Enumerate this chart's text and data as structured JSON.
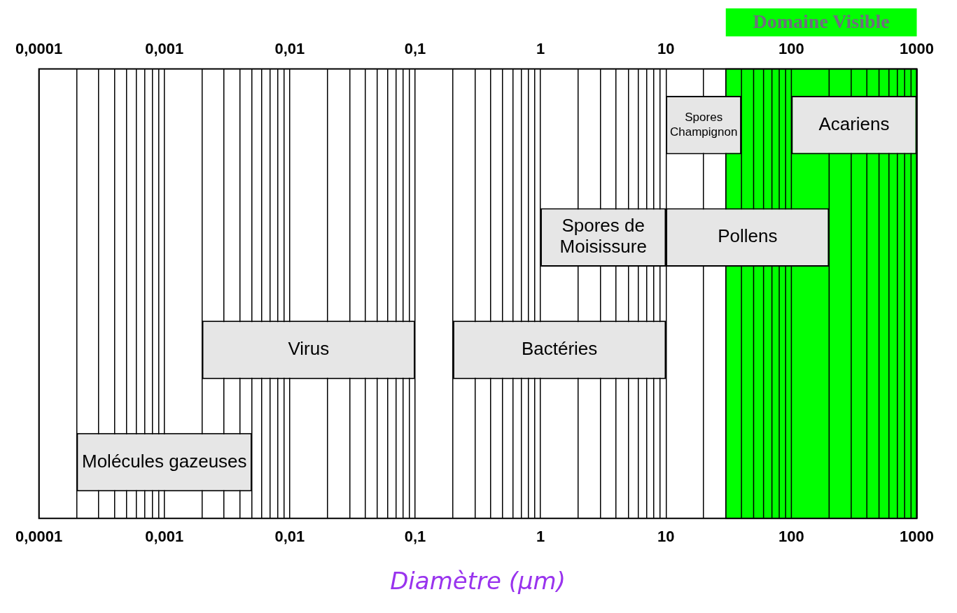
{
  "chart_data": {
    "type": "bar",
    "orientation": "horizontal",
    "xlabel": "Diamètre (μm)",
    "log": "x",
    "grid": "x",
    "legend": false,
    "tick_labels": "x",
    "categories": [
      null,
      null,
      null,
      null
    ],
    "series": [
      {
        "name": "Spores Champignon",
        "color": "#e6e6e6",
        "values": [
          30,
          null,
          null,
          null
        ],
        "base": [
          10,
          null,
          null,
          null
        ]
      },
      {
        "name": "Acariens",
        "color": "#e6e6e6",
        "values": [
          900,
          null,
          null,
          null
        ],
        "base": [
          100,
          null,
          null,
          null
        ]
      },
      {
        "name": "Spores de Moisissure",
        "color": "#e6e6e6",
        "values": [
          null,
          9,
          null,
          null
        ],
        "base": [
          null,
          1,
          null,
          null
        ]
      },
      {
        "name": "Pollens",
        "color": "#e6e6e6",
        "values": [
          null,
          190,
          null,
          null
        ],
        "base": [
          null,
          10,
          null,
          null
        ]
      },
      {
        "name": "Virus",
        "color": "#e6e6e6",
        "values": [
          null,
          null,
          0.098,
          null
        ],
        "base": [
          null,
          null,
          0.002,
          null
        ]
      },
      {
        "name": "Bactéries",
        "color": "#e6e6e6",
        "values": [
          null,
          null,
          9.8,
          null
        ],
        "base": [
          null,
          null,
          0.2,
          null
        ]
      },
      {
        "name": "Molécules gazeuses",
        "color": "#e6e6e6",
        "values": [
          null,
          null,
          null,
          0.0048
        ],
        "base": [
          null,
          null,
          null,
          0.0002
        ]
      }
    ],
    "bands": [
      {
        "axis": "x",
        "from": 30,
        "to": 1000,
        "label": "Domaine Visible",
        "color": "#00ff00"
      }
    ],
    "xlim": [
      0.0001,
      1000
    ],
    "xticks": [
      {
        "value": 0.0001,
        "label": "0,0001"
      },
      {
        "value": 0.0002,
        "label": null
      },
      {
        "value": 0.0003,
        "label": null
      },
      {
        "value": 0.0004,
        "label": null
      },
      {
        "value": 0.0005,
        "label": null
      },
      {
        "value": 0.0006,
        "label": null
      },
      {
        "value": 0.0007,
        "label": null
      },
      {
        "value": 0.0008,
        "label": null
      },
      {
        "value": 0.0009,
        "label": null
      },
      {
        "value": 0.001,
        "label": "0,001"
      },
      {
        "value": 0.002,
        "label": null
      },
      {
        "value": 0.003,
        "label": null
      },
      {
        "value": 0.004,
        "label": null
      },
      {
        "value": 0.005,
        "label": null
      },
      {
        "value": 0.006,
        "label": null
      },
      {
        "value": 0.007,
        "label": null
      },
      {
        "value": 0.008,
        "label": null
      },
      {
        "value": 0.009,
        "label": null
      },
      {
        "value": 0.01,
        "label": "0,01"
      },
      {
        "value": 0.02,
        "label": null
      },
      {
        "value": 0.03,
        "label": null
      },
      {
        "value": 0.04,
        "label": null
      },
      {
        "value": 0.05,
        "label": null
      },
      {
        "value": 0.06,
        "label": null
      },
      {
        "value": 0.07,
        "label": null
      },
      {
        "value": 0.08,
        "label": null
      },
      {
        "value": 0.09,
        "label": null
      },
      {
        "value": 0.1,
        "label": "0,1"
      },
      {
        "value": 0.2,
        "label": null
      },
      {
        "value": 0.3,
        "label": null
      },
      {
        "value": 0.4,
        "label": null
      },
      {
        "value": 0.5,
        "label": null
      },
      {
        "value": 0.6,
        "label": null
      },
      {
        "value": 0.7,
        "label": null
      },
      {
        "value": 0.8,
        "label": null
      },
      {
        "value": 0.9,
        "label": null
      },
      {
        "value": 1,
        "label": "1"
      },
      {
        "value": 2,
        "label": null
      },
      {
        "value": 3,
        "label": null
      },
      {
        "value": 4,
        "label": null
      },
      {
        "value": 5,
        "label": null
      },
      {
        "value": 6,
        "label": null
      },
      {
        "value": 7,
        "label": null
      },
      {
        "value": 8,
        "label": null
      },
      {
        "value": 9,
        "label": null
      },
      {
        "value": 10,
        "label": "10"
      },
      {
        "value": 20,
        "label": null
      },
      {
        "value": 30,
        "label": null
      },
      {
        "value": 40,
        "label": null
      },
      {
        "value": 50,
        "label": null
      },
      {
        "value": 60,
        "label": null
      },
      {
        "value": 70,
        "label": null
      },
      {
        "value": 80,
        "label": null
      },
      {
        "value": 90,
        "label": null
      },
      {
        "value": 100,
        "label": "100"
      },
      {
        "value": 200,
        "label": null
      },
      {
        "value": 300,
        "label": null
      },
      {
        "value": 400,
        "label": null
      },
      {
        "value": 500,
        "label": null
      },
      {
        "value": 600,
        "label": null
      },
      {
        "value": 700,
        "label": null
      },
      {
        "value": 800,
        "label": null
      },
      {
        "value": 900,
        "label": null
      },
      {
        "value": 1000,
        "label": "1000"
      }
    ]
  }
}
